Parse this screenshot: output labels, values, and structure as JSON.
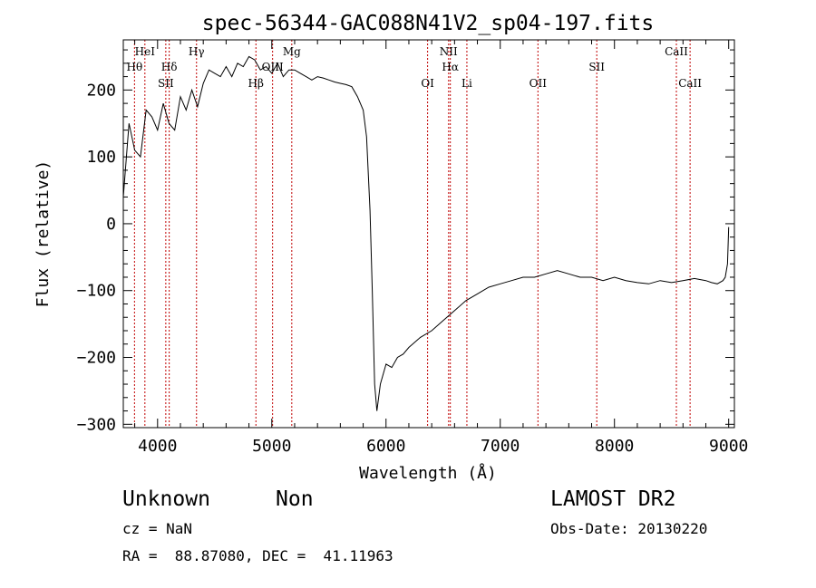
{
  "chart_data": {
    "type": "line",
    "title": "spec-56344-GAC088N41V2_sp04-197.fits",
    "xlabel": "Wavelength (Å)",
    "ylabel": "Flux (relative)",
    "xlim": [
      3700,
      9050
    ],
    "ylim": [
      -305,
      275
    ],
    "xticks": [
      4000,
      5000,
      6000,
      7000,
      8000,
      9000
    ],
    "yticks": [
      -300,
      -200,
      -100,
      0,
      100,
      200
    ],
    "grid": false,
    "series": [
      {
        "x": [
          3700,
          3750,
          3800,
          3850,
          3900,
          3950,
          4000,
          4050,
          4100,
          4150,
          4200,
          4250,
          4300,
          4350,
          4400,
          4450,
          4500,
          4550,
          4600,
          4650,
          4700,
          4750,
          4800,
          4850,
          4900,
          4950,
          5000,
          5050,
          5100,
          5150,
          5200,
          5250,
          5300,
          5350,
          5400,
          5450,
          5500,
          5550,
          5600,
          5650,
          5700,
          5750,
          5800,
          5830,
          5860,
          5880,
          5900,
          5920,
          5950,
          6000,
          6050,
          6100,
          6150,
          6200,
          6300,
          6400,
          6500,
          6600,
          6700,
          6800,
          6900,
          7000,
          7100,
          7200,
          7300,
          7400,
          7500,
          7600,
          7700,
          7800,
          7900,
          8000,
          8100,
          8200,
          8300,
          8400,
          8500,
          8600,
          8700,
          8800,
          8850,
          8900,
          8950,
          8970,
          8990,
          9000
        ],
        "y": [
          40,
          150,
          110,
          100,
          170,
          160,
          140,
          180,
          150,
          140,
          190,
          170,
          200,
          175,
          210,
          230,
          225,
          220,
          235,
          220,
          240,
          235,
          250,
          245,
          230,
          235,
          225,
          240,
          220,
          230,
          230,
          225,
          220,
          215,
          220,
          218,
          215,
          212,
          210,
          208,
          205,
          190,
          170,
          130,
          20,
          -100,
          -240,
          -280,
          -240,
          -210,
          -215,
          -200,
          -195,
          -185,
          -170,
          -160,
          -145,
          -130,
          -115,
          -105,
          -95,
          -90,
          -85,
          -80,
          -80,
          -75,
          -70,
          -75,
          -80,
          -80,
          -85,
          -80,
          -85,
          -88,
          -90,
          -85,
          -88,
          -85,
          -82,
          -85,
          -88,
          -90,
          -85,
          -80,
          -60,
          -5
        ]
      }
    ],
    "spectral_lines": [
      {
        "label": "Hθ",
        "wavelength": 3798,
        "row": 2
      },
      {
        "label": "HeI",
        "wavelength": 3889,
        "row": 1
      },
      {
        "label": "SII",
        "wavelength": 4072,
        "row": 3
      },
      {
        "label": "Hδ",
        "wavelength": 4102,
        "row": 2
      },
      {
        "label": "Hγ",
        "wavelength": 4341,
        "row": 1
      },
      {
        "label": "Hβ",
        "wavelength": 4861,
        "row": 3
      },
      {
        "label": "OIII",
        "wavelength": 5007,
        "row": 2
      },
      {
        "label": "Mg",
        "wavelength": 5175,
        "row": 1
      },
      {
        "label": "OI",
        "wavelength": 6364,
        "row": 3
      },
      {
        "label": "NII",
        "wavelength": 6548,
        "row": 1
      },
      {
        "label": "Hα",
        "wavelength": 6563,
        "row": 2
      },
      {
        "label": "Li",
        "wavelength": 6708,
        "row": 3
      },
      {
        "label": "OII",
        "wavelength": 7330,
        "row": 3
      },
      {
        "label": "SII",
        "wavelength": 7845,
        "row": 2
      },
      {
        "label": "CaII",
        "wavelength": 8542,
        "row": 1
      },
      {
        "label": "CaII",
        "wavelength": 8662,
        "row": 3
      }
    ]
  },
  "info": {
    "class": "Unknown",
    "subclass": "Non",
    "survey": "LAMOST DR2",
    "cz": "cz = NaN",
    "obs_date": "Obs-Date: 20130220",
    "coords": "RA =  88.87080, DEC =  41.11963"
  },
  "colors": {
    "spectrum": "#000000",
    "line_markers": "#c00000",
    "axes": "#000000"
  }
}
